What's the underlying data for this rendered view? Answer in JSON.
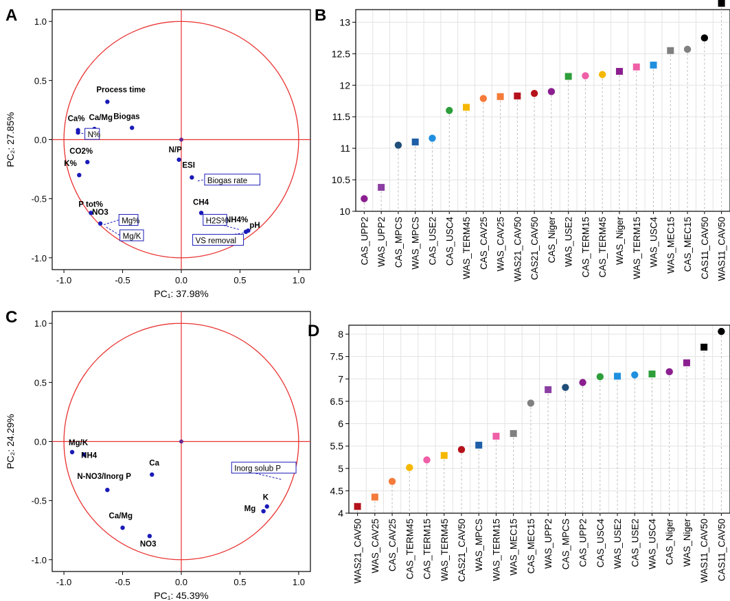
{
  "panel_letters": [
    "A",
    "B",
    "C",
    "D"
  ],
  "colors": {
    "circle": "#e8312f",
    "point": "#1a1ab8",
    "axis": "#000000",
    "grid": "#e3e3e3",
    "stem": "#bdbdbd"
  },
  "chart_data": [
    {
      "id": "A",
      "type": "scatter",
      "subtype": "pca-correlation-circle",
      "xlabel": "PC₁: 37.98%",
      "ylabel": "PC₂: 27.85%",
      "xlim": [
        -1.1,
        1.1
      ],
      "ylim": [
        -1.1,
        1.1
      ],
      "ticks": [
        -1.0,
        -0.5,
        0.0,
        0.5,
        1.0
      ],
      "tick_labels": [
        "-1.0",
        "-0.5",
        "0.0",
        "0.5",
        "1.0"
      ],
      "unit_circle": true,
      "points": [
        {
          "label": "Process time",
          "x": -0.63,
          "y": 0.32
        },
        {
          "label": "Ca%",
          "x": -0.88,
          "y": 0.08
        },
        {
          "label": "",
          "x": -0.88,
          "y": 0.06
        },
        {
          "label": "Ca/Mg",
          "x": -0.74,
          "y": 0.09
        },
        {
          "label": "Biogas",
          "x": -0.42,
          "y": 0.1
        },
        {
          "label": "N%",
          "x": -0.88,
          "y": 0.06,
          "boxed": true
        },
        {
          "label": "CO2%",
          "x": -0.8,
          "y": -0.19
        },
        {
          "label": "K%",
          "x": -0.87,
          "y": -0.3
        },
        {
          "label": "N/P",
          "x": -0.02,
          "y": -0.17
        },
        {
          "label": "ESI",
          "x": 0.09,
          "y": -0.32
        },
        {
          "label": "Biogas rate",
          "x": 0.14,
          "y": -0.35,
          "boxed": true
        },
        {
          "label": "P tot%",
          "x": -0.77,
          "y": -0.62
        },
        {
          "label": "NO3",
          "x": -0.69,
          "y": -0.71
        },
        {
          "label": "Mg%",
          "x": -0.66,
          "y": -0.72,
          "boxed": true
        },
        {
          "label": "Mg/K",
          "x": -0.64,
          "y": -0.74,
          "boxed": true
        },
        {
          "label": "CH4",
          "x": 0.17,
          "y": -0.62
        },
        {
          "label": "NH4%",
          "x": 0.55,
          "y": -0.78
        },
        {
          "label": "H2S%",
          "x": 0.49,
          "y": -0.76,
          "boxed": true
        },
        {
          "label": "pH",
          "x": 0.57,
          "y": -0.77
        },
        {
          "label": "VS removal",
          "x": 0.53,
          "y": -0.79,
          "boxed": true
        }
      ]
    },
    {
      "id": "B",
      "type": "scatter",
      "subtype": "ranked-dot",
      "ylim": [
        10,
        13.2
      ],
      "yticks": [
        "10",
        "10.5",
        "11",
        "11.5",
        "12",
        "12.5",
        "13"
      ],
      "categories": [
        "CAS_UPP2",
        "WAS_UPP2",
        "CAS_MPCS",
        "WAS_MPCS",
        "CAS_USE2",
        "CAS_USC4",
        "WAS_TERM45",
        "CAS_CAV25",
        "WAS_CAV25",
        "WAS21_CAV50",
        "CAS21_CAV50",
        "CAS_Niger",
        "WAS_USE2",
        "CAS_TERM15",
        "CAS_TERM45",
        "WAS_Niger",
        "WAS_TERM15",
        "WAS_USC4",
        "WAS_MEC15",
        "CAS_MEC15",
        "CAS11_CAV50",
        "WAS11_CAV50"
      ],
      "values": [
        10.2,
        10.38,
        11.05,
        11.1,
        11.16,
        11.6,
        11.65,
        11.79,
        11.82,
        11.83,
        11.87,
        11.9,
        12.14,
        12.15,
        12.17,
        12.22,
        12.29,
        12.32,
        12.55,
        12.57,
        12.75,
        13.3
      ],
      "markers": [
        "circle",
        "square",
        "circle",
        "square",
        "circle",
        "circle",
        "square",
        "circle",
        "square",
        "square",
        "circle",
        "circle",
        "square",
        "circle",
        "circle",
        "square",
        "square",
        "square",
        "square",
        "circle",
        "circle",
        "square"
      ],
      "marker_colors": [
        "#8b1f8f",
        "#8b3fa2",
        "#1f4e79",
        "#1f5fa8",
        "#1f8fdf",
        "#2e9e3a",
        "#f5b800",
        "#f47b3a",
        "#f47b3a",
        "#b5121b",
        "#b5121b",
        "#8b1f8f",
        "#2e9e3a",
        "#ee5fa7",
        "#f5b800",
        "#8b1f8f",
        "#ee5fa7",
        "#1f8fdf",
        "#808080",
        "#808080",
        "#000000",
        "#000000"
      ]
    },
    {
      "id": "C",
      "type": "scatter",
      "subtype": "pca-correlation-circle",
      "xlabel": "PC₁: 45.39%",
      "ylabel": "PC₂: 24.29%",
      "xlim": [
        -1.1,
        1.1
      ],
      "ylim": [
        -1.1,
        1.1
      ],
      "ticks": [
        -1.0,
        -0.5,
        0.0,
        0.5,
        1.0
      ],
      "tick_labels": [
        "-1.0",
        "-0.5",
        "0.0",
        "0.5",
        "1.0"
      ],
      "unit_circle": true,
      "points": [
        {
          "label": "Mg/K",
          "x": -0.93,
          "y": -0.09
        },
        {
          "label": "NH4",
          "x": -0.83,
          "y": -0.11
        },
        {
          "label": "Ca",
          "x": -0.25,
          "y": -0.28
        },
        {
          "label": "N-NO3/Inorg P",
          "x": -0.63,
          "y": -0.41
        },
        {
          "label": "Ca/Mg",
          "x": -0.5,
          "y": -0.73
        },
        {
          "label": "NO3",
          "x": -0.27,
          "y": -0.8
        },
        {
          "label": "Inorg solub P",
          "x": 0.85,
          "y": -0.32,
          "boxed": true
        },
        {
          "label": "K",
          "x": 0.73,
          "y": -0.55
        },
        {
          "label": "Mg",
          "x": 0.7,
          "y": -0.59
        }
      ]
    },
    {
      "id": "D",
      "type": "scatter",
      "subtype": "ranked-dot",
      "ylim": [
        4,
        8.2
      ],
      "yticks": [
        "4",
        "4.5",
        "5",
        "5.5",
        "6",
        "6.5",
        "7",
        "7.5",
        "8"
      ],
      "categories": [
        "WAS21_CAV50",
        "WAS_CAV25",
        "CAS_CAV25",
        "CAS_TERM45",
        "CAS_TERM15",
        "WAS_TERM45",
        "CAS21_CAV50",
        "WAS_MPCS",
        "WAS_TERM15",
        "WAS_MEC15",
        "CAS_MEC15",
        "WAS_UPP2",
        "CAS_MPCS",
        "CAS_UPP2",
        "CAS_USC4",
        "WAS_USE2",
        "CAS_USE2",
        "WAS_USC4",
        "CAS_Niger",
        "WAS_Niger",
        "WAS11_CAV50",
        "CAS11_CAV50"
      ],
      "values": [
        4.15,
        4.36,
        4.71,
        5.02,
        5.19,
        5.29,
        5.42,
        5.52,
        5.72,
        5.78,
        6.46,
        6.76,
        6.81,
        6.92,
        7.05,
        7.06,
        7.09,
        7.11,
        7.16,
        7.36,
        7.71,
        8.06
      ],
      "markers": [
        "square",
        "square",
        "circle",
        "circle",
        "circle",
        "square",
        "circle",
        "square",
        "square",
        "square",
        "circle",
        "square",
        "circle",
        "circle",
        "circle",
        "square",
        "circle",
        "square",
        "circle",
        "square",
        "square",
        "circle"
      ],
      "marker_colors": [
        "#b5121b",
        "#f47b3a",
        "#f47b3a",
        "#f5b800",
        "#ee5fa7",
        "#f5b800",
        "#b5121b",
        "#1f5fa8",
        "#ee5fa7",
        "#808080",
        "#808080",
        "#8b3fa2",
        "#1f4e79",
        "#8b1f8f",
        "#2e9e3a",
        "#1f8fdf",
        "#1f8fdf",
        "#2e9e3a",
        "#8b1f8f",
        "#8b1f8f",
        "#000000",
        "#000000"
      ]
    }
  ]
}
